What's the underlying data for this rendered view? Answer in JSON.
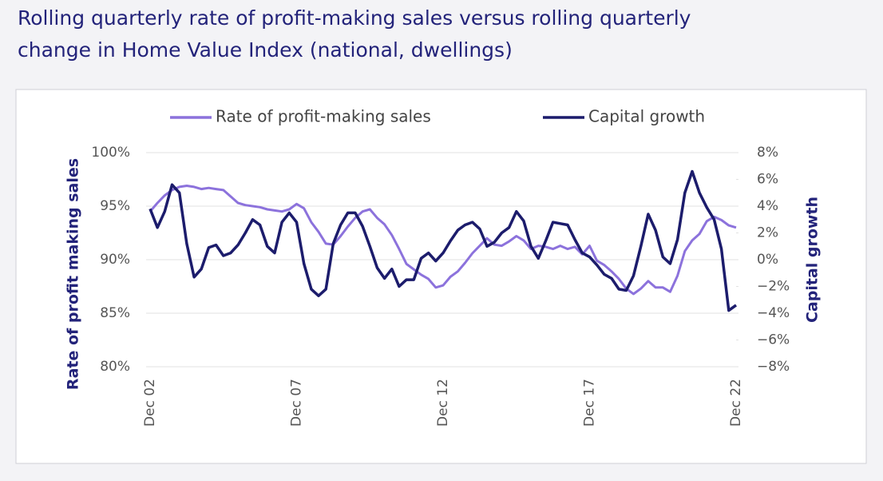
{
  "chart_data": {
    "type": "line",
    "title": "Rolling quarterly rate of profit-making sales versus rolling quarterly change in Home Value Index (national, dwellings)",
    "title_lines": [
      "Rolling quarterly rate of profit-making sales versus rolling quarterly",
      "change in Home Value Index (national, dwellings)"
    ],
    "ylabel": "Rate of profit making sales",
    "y2label": "Capital growth",
    "categories": [
      "Dec 02",
      null,
      null,
      null,
      null,
      null,
      null,
      null,
      null,
      null,
      null,
      null,
      null,
      null,
      null,
      null,
      null,
      null,
      null,
      null,
      "Dec 07",
      null,
      null,
      null,
      null,
      null,
      null,
      null,
      null,
      null,
      null,
      null,
      null,
      null,
      null,
      null,
      null,
      null,
      null,
      null,
      "Dec 12",
      null,
      null,
      null,
      null,
      null,
      null,
      null,
      null,
      null,
      null,
      null,
      null,
      null,
      null,
      null,
      null,
      null,
      null,
      null,
      "Dec 17",
      null,
      null,
      null,
      null,
      null,
      null,
      null,
      null,
      null,
      null,
      null,
      null,
      null,
      null,
      null,
      null,
      null,
      null,
      null,
      "Dec 22"
    ],
    "series": [
      {
        "name": "Rate of profit-making sales",
        "color": "#8c72dc",
        "axis": "y",
        "values": [
          94.5,
          95.3,
          96.0,
          96.5,
          96.8,
          96.9,
          96.8,
          96.6,
          96.7,
          96.6,
          96.5,
          95.9,
          95.3,
          95.1,
          95.0,
          94.9,
          94.7,
          94.6,
          94.5,
          94.7,
          95.2,
          94.8,
          93.5,
          92.6,
          91.5,
          91.4,
          92.2,
          93.1,
          93.9,
          94.5,
          94.7,
          93.9,
          93.3,
          92.3,
          91.0,
          89.6,
          89.1,
          88.6,
          88.2,
          87.4,
          87.6,
          88.4,
          88.9,
          89.7,
          90.6,
          91.3,
          92.0,
          91.4,
          91.3,
          91.7,
          92.2,
          91.8,
          91.0,
          91.3,
          91.2,
          91.0,
          91.3,
          91.0,
          91.2,
          90.5,
          91.3,
          89.9,
          89.5,
          88.9,
          88.2,
          87.3,
          86.8,
          87.3,
          88.0,
          87.4,
          87.4,
          87.0,
          88.5,
          90.8,
          91.8,
          92.4,
          93.6,
          94.0,
          93.7,
          93.2,
          93.0
        ]
      },
      {
        "name": "Capital growth",
        "color": "#1c1c6c",
        "axis": "y2",
        "values": [
          3.8,
          2.4,
          3.6,
          5.6,
          5.0,
          1.2,
          -1.3,
          -0.7,
          0.9,
          1.1,
          0.3,
          0.5,
          1.1,
          2.0,
          3.0,
          2.6,
          1.0,
          0.5,
          2.8,
          3.5,
          2.8,
          -0.3,
          -2.2,
          -2.7,
          -2.2,
          1.2,
          2.6,
          3.5,
          3.5,
          2.5,
          1.0,
          -0.6,
          -1.4,
          -0.7,
          -2.0,
          -1.5,
          -1.5,
          0.1,
          0.5,
          -0.1,
          0.5,
          1.4,
          2.2,
          2.6,
          2.8,
          2.3,
          1.0,
          1.3,
          2.0,
          2.4,
          3.6,
          2.9,
          1.0,
          0.1,
          1.4,
          2.8,
          2.7,
          2.6,
          1.5,
          0.5,
          0.2,
          -0.4,
          -1.1,
          -1.4,
          -2.2,
          -2.3,
          -1.2,
          1.0,
          3.4,
          2.2,
          0.2,
          -0.3,
          1.5,
          5.0,
          6.6,
          5.0,
          3.9,
          3.0,
          0.8,
          -3.8,
          -3.4
        ]
      }
    ],
    "ylim": [
      80,
      100
    ],
    "yticks": [
      {
        "value": 80,
        "label": "80%"
      },
      {
        "value": 85,
        "label": "85%"
      },
      {
        "value": 90,
        "label": "90%"
      },
      {
        "value": 95,
        "label": "95%"
      },
      {
        "value": 100,
        "label": "100%"
      }
    ],
    "y2lim": [
      -8,
      8
    ],
    "y2ticks": [
      {
        "value": -8,
        "label": "−8%"
      },
      {
        "value": -6,
        "label": "−6%"
      },
      {
        "value": -4,
        "label": "−4%"
      },
      {
        "value": -2,
        "label": "−2%"
      },
      {
        "value": 0,
        "label": "0%"
      },
      {
        "value": 2,
        "label": "2%"
      },
      {
        "value": 4,
        "label": "4%"
      },
      {
        "value": 6,
        "label": "6%"
      },
      {
        "value": 8,
        "label": "8%"
      }
    ],
    "grid": true,
    "legend": "top"
  }
}
